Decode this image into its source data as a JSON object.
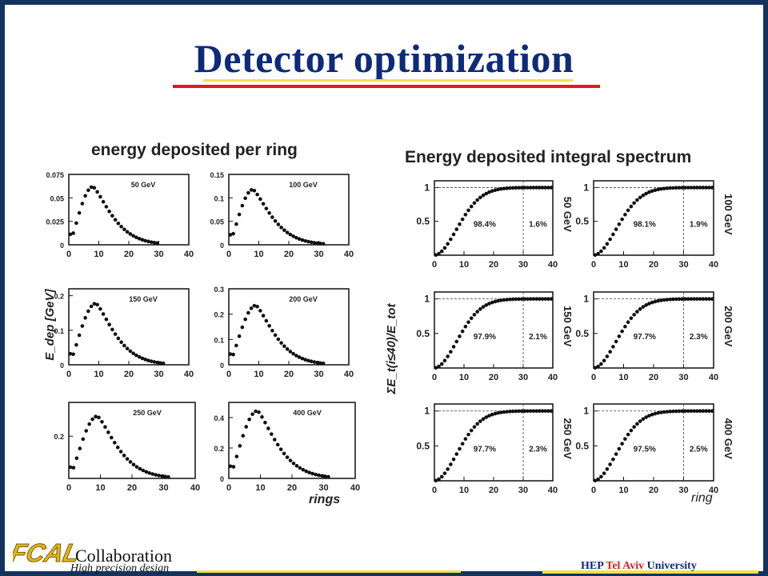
{
  "slide": {
    "title": "Detector optimization",
    "footer": {
      "logo_text": "FCAL",
      "collaboration": "Collaboration",
      "subtitle": "High precision design",
      "university_part1": "HEP ",
      "university_part2": "Tel Aviv",
      "university_part3": " University"
    },
    "colors": {
      "title": "#0d2b78",
      "border": "#14325e",
      "underline_red": "#e21a1a",
      "underline_yellow": "#f2e04a",
      "logo": "#e0b81c"
    }
  },
  "panels": {
    "left_heading": "energy deposited per ring",
    "right_heading": "Energy deposited integral spectrum",
    "left_ylabel": "E_dep [GeV]",
    "right_ylabel": "ΣE_t(i≤40)/E_tot",
    "left_xlabel": "rings",
    "right_xlabel": "ring"
  },
  "chart_data": [
    {
      "type": "scatter",
      "group": "per-ring",
      "energy_label": "50 GeV",
      "x_ticks": [
        "0",
        "10",
        "20",
        "30",
        "40"
      ],
      "y_ticks": [
        "0",
        "0.025",
        "0.05",
        "0.075"
      ],
      "xlim": [
        0,
        40
      ],
      "ylim": [
        0,
        0.075
      ],
      "peak_ring": 8,
      "peak_value": 0.062,
      "last_ring": 30
    },
    {
      "type": "scatter",
      "group": "per-ring",
      "energy_label": "100 GeV",
      "x_ticks": [
        "0",
        "10",
        "20",
        "30",
        "40"
      ],
      "y_ticks": [
        "0",
        "0.05",
        "0.1",
        "0.15"
      ],
      "xlim": [
        0,
        40
      ],
      "ylim": [
        0,
        0.15
      ],
      "peak_ring": 8,
      "peak_value": 0.118,
      "last_ring": 32
    },
    {
      "type": "scatter",
      "group": "per-ring",
      "energy_label": "150 GeV",
      "x_ticks": [
        "0",
        "10",
        "20",
        "30",
        "40"
      ],
      "y_ticks": [
        "0",
        "0.1",
        "0.2"
      ],
      "xlim": [
        0,
        40
      ],
      "ylim": [
        0,
        0.22
      ],
      "peak_ring": 9,
      "peak_value": 0.178,
      "last_ring": 32
    },
    {
      "type": "scatter",
      "group": "per-ring",
      "energy_label": "200 GeV",
      "x_ticks": [
        "0",
        "10",
        "20",
        "30",
        "40"
      ],
      "y_ticks": [
        "0",
        "0.1",
        "0.2",
        "0.3"
      ],
      "xlim": [
        0,
        40
      ],
      "ylim": [
        0,
        0.3
      ],
      "peak_ring": 9,
      "peak_value": 0.235,
      "last_ring": 32
    },
    {
      "type": "scatter",
      "group": "per-ring",
      "energy_label": "250 GeV",
      "x_ticks": [
        "0",
        "10",
        "20",
        "30",
        "40"
      ],
      "y_ticks": [
        "0.2"
      ],
      "xlim": [
        0,
        40
      ],
      "ylim": [
        0,
        0.36
      ],
      "peak_ring": 9,
      "peak_value": 0.295,
      "last_ring": 32
    },
    {
      "type": "scatter",
      "group": "per-ring",
      "energy_label": "400 GeV",
      "x_ticks": [
        "0",
        "10",
        "20",
        "30",
        "40"
      ],
      "y_ticks": [
        "0",
        "0.2",
        "0.4"
      ],
      "xlim": [
        0,
        40
      ],
      "ylim": [
        0,
        0.5
      ],
      "peak_ring": 9,
      "peak_value": 0.445,
      "last_ring": 32
    },
    {
      "type": "scatter",
      "group": "integral",
      "energy_label": "50 GeV",
      "x_ticks": [
        "0",
        "10",
        "20",
        "30",
        "40"
      ],
      "y_ticks": [
        "0.5",
        "1"
      ],
      "xlim": [
        0,
        40
      ],
      "ylim": [
        0,
        1.1
      ],
      "inner_fraction": "98.4%",
      "outer_fraction": "1.6%",
      "cut_ring": 30
    },
    {
      "type": "scatter",
      "group": "integral",
      "energy_label": "100 GeV",
      "x_ticks": [
        "0",
        "10",
        "20",
        "30",
        "40"
      ],
      "y_ticks": [
        "0.5",
        "1"
      ],
      "xlim": [
        0,
        40
      ],
      "ylim": [
        0,
        1.1
      ],
      "inner_fraction": "98.1%",
      "outer_fraction": "1.9%",
      "cut_ring": 30
    },
    {
      "type": "scatter",
      "group": "integral",
      "energy_label": "150 GeV",
      "x_ticks": [
        "0",
        "10",
        "20",
        "30",
        "40"
      ],
      "y_ticks": [
        "0.5",
        "1"
      ],
      "xlim": [
        0,
        40
      ],
      "ylim": [
        0,
        1.1
      ],
      "inner_fraction": "97.9%",
      "outer_fraction": "2.1%",
      "cut_ring": 30
    },
    {
      "type": "scatter",
      "group": "integral",
      "energy_label": "200 GeV",
      "x_ticks": [
        "0",
        "10",
        "20",
        "30",
        "40"
      ],
      "y_ticks": [
        "0.5",
        "1"
      ],
      "xlim": [
        0,
        40
      ],
      "ylim": [
        0,
        1.1
      ],
      "inner_fraction": "97.7%",
      "outer_fraction": "2.3%",
      "cut_ring": 30
    },
    {
      "type": "scatter",
      "group": "integral",
      "energy_label": "250 GeV",
      "x_ticks": [
        "0",
        "10",
        "20",
        "30",
        "40"
      ],
      "y_ticks": [
        "0.5",
        "1"
      ],
      "xlim": [
        0,
        40
      ],
      "ylim": [
        0,
        1.1
      ],
      "inner_fraction": "97.7%",
      "outer_fraction": "2.3%",
      "cut_ring": 30
    },
    {
      "type": "scatter",
      "group": "integral",
      "energy_label": "400 GeV",
      "x_ticks": [
        "0",
        "10",
        "20",
        "30",
        "40"
      ],
      "y_ticks": [
        "0.5",
        "1"
      ],
      "xlim": [
        0,
        40
      ],
      "ylim": [
        0,
        1.1
      ],
      "inner_fraction": "97.5%",
      "outer_fraction": "2.5%",
      "cut_ring": 30
    }
  ]
}
